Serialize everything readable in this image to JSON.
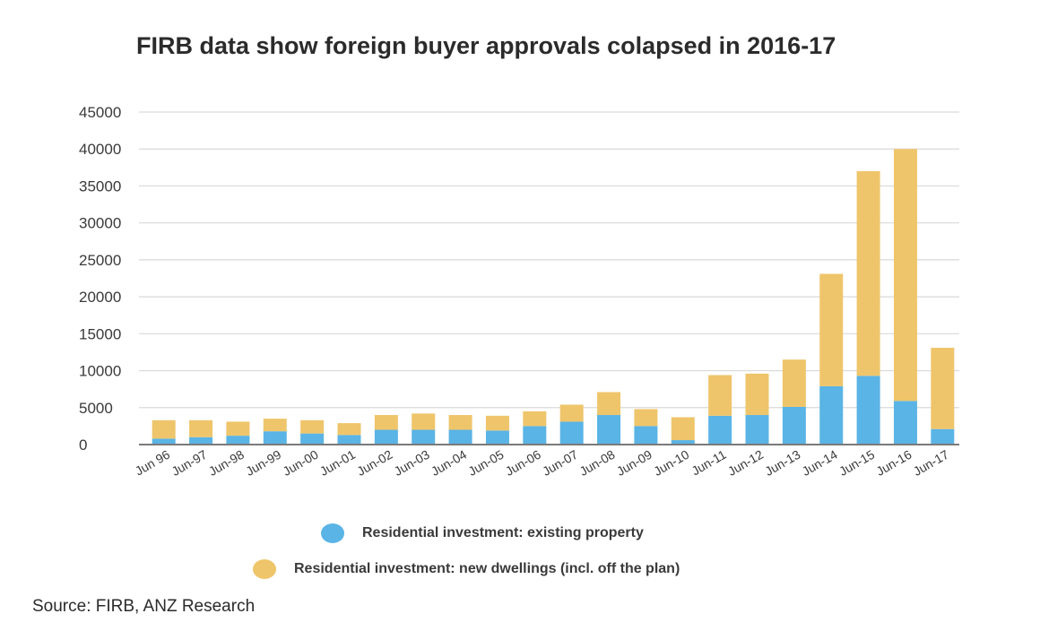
{
  "chart_data": {
    "type": "bar",
    "stacked": true,
    "title": "FIRB data show foreign buyer approvals colapsed in 2016-17",
    "xlabel": "",
    "ylabel": "",
    "ylim": [
      0,
      45000
    ],
    "yticks": [
      0,
      5000,
      10000,
      15000,
      20000,
      25000,
      30000,
      35000,
      40000,
      45000
    ],
    "grid": true,
    "legend_position": "bottom",
    "categories": [
      "Jun 96",
      "Jun-97",
      "Jun-98",
      "Jun-99",
      "Jun-00",
      "Jun-01",
      "Jun-02",
      "Jun-03",
      "Jun-04",
      "Jun-05",
      "Jun-06",
      "Jun-07",
      "Jun-08",
      "Jun-09",
      "Jun-10",
      "Jun-11",
      "Jun-12",
      "Jun-13",
      "Jun-14",
      "Jun-15",
      "Jun-16",
      "Jun-17"
    ],
    "series": [
      {
        "name": "Residential investment: existing property",
        "color": "#5ab4e5",
        "values": [
          800,
          1000,
          1200,
          1800,
          1500,
          1300,
          2000,
          2000,
          2000,
          1900,
          2500,
          3100,
          4000,
          2500,
          600,
          3900,
          4000,
          5100,
          7900,
          9300,
          5900,
          2100
        ]
      },
      {
        "name": "Residential investment: new dwellings (incl. off the plan)",
        "color": "#efc56b",
        "values": [
          2500,
          2300,
          1900,
          1700,
          1800,
          1600,
          2000,
          2200,
          2000,
          2000,
          2000,
          2300,
          3100,
          2300,
          3100,
          5500,
          5600,
          6400,
          15200,
          27700,
          34100,
          11000
        ]
      }
    ]
  },
  "source": "Source: FIRB, ANZ Research"
}
